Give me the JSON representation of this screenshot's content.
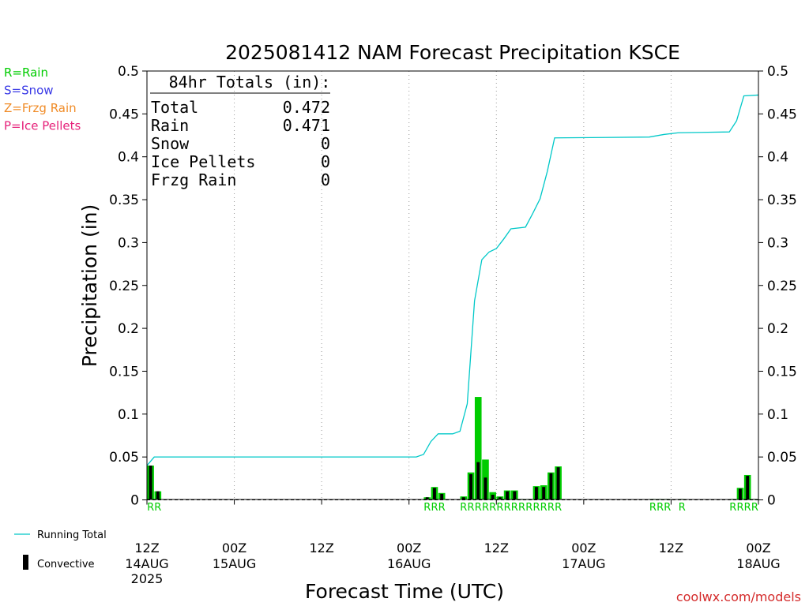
{
  "chart_data": {
    "type": "bar",
    "title": "2025081412 NAM Forecast Precipitation KSCE",
    "xlabel": "Forecast Time (UTC)",
    "ylabel": "Precipitation (in)",
    "ylim": [
      0,
      0.5
    ],
    "y_ticks": [
      0,
      0.05,
      0.1,
      0.15,
      0.2,
      0.25,
      0.3,
      0.35,
      0.4,
      0.45,
      0.5
    ],
    "x_range_hours": [
      0,
      84
    ],
    "x_ticks": [
      {
        "hour": 0,
        "line1": "12Z",
        "line2": "14AUG",
        "line3": "2025"
      },
      {
        "hour": 12,
        "line1": "00Z",
        "line2": "15AUG",
        "line3": ""
      },
      {
        "hour": 24,
        "line1": "12Z",
        "line2": "",
        "line3": ""
      },
      {
        "hour": 36,
        "line1": "00Z",
        "line2": "16AUG",
        "line3": ""
      },
      {
        "hour": 48,
        "line1": "12Z",
        "line2": "",
        "line3": ""
      },
      {
        "hour": 60,
        "line1": "00Z",
        "line2": "17AUG",
        "line3": ""
      },
      {
        "hour": 72,
        "line1": "12Z",
        "line2": "",
        "line3": ""
      },
      {
        "hour": 84,
        "line1": "00Z",
        "line2": "18AUG",
        "line3": ""
      }
    ],
    "grid": "vertical dotted at 12-hour intervals",
    "precip_legend": [
      {
        "label": "R=Rain",
        "color": "#00cc00"
      },
      {
        "label": "S=Snow",
        "color": "#3a3ae6"
      },
      {
        "label": "Z=Frzg Rain",
        "color": "#f08c28"
      },
      {
        "label": "P=Ice Pellets",
        "color": "#e6217a"
      }
    ],
    "series_legend": [
      {
        "label": "Running Total",
        "color": "#00c8c8",
        "kind": "line"
      },
      {
        "label": "Convective",
        "color": "#000000",
        "kind": "bar"
      }
    ],
    "totals": {
      "heading": "84hr Totals (in):",
      "rows": [
        {
          "label": "Total",
          "value": "0.472"
        },
        {
          "label": "Rain",
          "value": "0.471"
        },
        {
          "label": "Snow",
          "value": "0"
        },
        {
          "label": "Ice Pellets",
          "value": "0"
        },
        {
          "label": "Frzg Rain",
          "value": "0"
        }
      ]
    },
    "bars": [
      {
        "hour": 0,
        "total": 0.04,
        "convective": 0.04,
        "ptype": "R"
      },
      {
        "hour": 1,
        "total": 0.01,
        "convective": 0.01,
        "ptype": "R"
      },
      {
        "hour": 38,
        "total": 0.003,
        "convective": 0.003,
        "ptype": "R"
      },
      {
        "hour": 39,
        "total": 0.015,
        "convective": 0.014,
        "ptype": "R"
      },
      {
        "hour": 40,
        "total": 0.008,
        "convective": 0.007,
        "ptype": "R"
      },
      {
        "hour": 43,
        "total": 0.004,
        "convective": 0.003,
        "ptype": "R"
      },
      {
        "hour": 44,
        "total": 0.032,
        "convective": 0.03,
        "ptype": "R"
      },
      {
        "hour": 45,
        "total": 0.12,
        "convective": 0.044,
        "ptype": "R"
      },
      {
        "hour": 46,
        "total": 0.047,
        "convective": 0.026,
        "ptype": "R"
      },
      {
        "hour": 47,
        "total": 0.009,
        "convective": 0.006,
        "ptype": "R"
      },
      {
        "hour": 48,
        "total": 0.004,
        "convective": 0.003,
        "ptype": "R"
      },
      {
        "hour": 49,
        "total": 0.011,
        "convective": 0.01,
        "ptype": "R"
      },
      {
        "hour": 50,
        "total": 0.011,
        "convective": 0.01,
        "ptype": "R"
      },
      {
        "hour": 51,
        "total": 0.001,
        "convective": 0.001,
        "ptype": "R"
      },
      {
        "hour": 52,
        "total": 0.001,
        "convective": 0.001,
        "ptype": "R"
      },
      {
        "hour": 53,
        "total": 0.016,
        "convective": 0.015,
        "ptype": "R"
      },
      {
        "hour": 54,
        "total": 0.017,
        "convective": 0.015,
        "ptype": "R"
      },
      {
        "hour": 55,
        "total": 0.032,
        "convective": 0.031,
        "ptype": "R"
      },
      {
        "hour": 56,
        "total": 0.039,
        "convective": 0.038,
        "ptype": "R"
      },
      {
        "hour": 69,
        "total": 0.001,
        "convective": 0.001,
        "ptype": "R"
      },
      {
        "hour": 70,
        "total": 0.001,
        "convective": 0.001,
        "ptype": "R"
      },
      {
        "hour": 71,
        "total": 0.001,
        "convective": 0.001,
        "ptype": "R"
      },
      {
        "hour": 73,
        "total": 0.001,
        "convective": 0.001,
        "ptype": "R"
      },
      {
        "hour": 80,
        "total": 0.001,
        "convective": 0.001,
        "ptype": "R"
      },
      {
        "hour": 81,
        "total": 0.014,
        "convective": 0.013,
        "ptype": "R"
      },
      {
        "hour": 82,
        "total": 0.029,
        "convective": 0.028,
        "ptype": "R"
      },
      {
        "hour": 83,
        "total": 0.001,
        "convective": 0.001,
        "ptype": "R"
      }
    ],
    "running_total": [
      {
        "hour": 0,
        "value": 0.04
      },
      {
        "hour": 1,
        "value": 0.05
      },
      {
        "hour": 37,
        "value": 0.05
      },
      {
        "hour": 38,
        "value": 0.053
      },
      {
        "hour": 39,
        "value": 0.068
      },
      {
        "hour": 40,
        "value": 0.077
      },
      {
        "hour": 42,
        "value": 0.077
      },
      {
        "hour": 43,
        "value": 0.08
      },
      {
        "hour": 44,
        "value": 0.112
      },
      {
        "hour": 45,
        "value": 0.232
      },
      {
        "hour": 46,
        "value": 0.28
      },
      {
        "hour": 47,
        "value": 0.289
      },
      {
        "hour": 48,
        "value": 0.293
      },
      {
        "hour": 49,
        "value": 0.304
      },
      {
        "hour": 50,
        "value": 0.316
      },
      {
        "hour": 52,
        "value": 0.318
      },
      {
        "hour": 53,
        "value": 0.334
      },
      {
        "hour": 54,
        "value": 0.351
      },
      {
        "hour": 55,
        "value": 0.383
      },
      {
        "hour": 56,
        "value": 0.422
      },
      {
        "hour": 69,
        "value": 0.423
      },
      {
        "hour": 71,
        "value": 0.426
      },
      {
        "hour": 73,
        "value": 0.428
      },
      {
        "hour": 80,
        "value": 0.429
      },
      {
        "hour": 81,
        "value": 0.442
      },
      {
        "hour": 82,
        "value": 0.471
      },
      {
        "hour": 84,
        "value": 0.472
      }
    ]
  },
  "footer": {
    "credit": "coolwx.com/models"
  }
}
